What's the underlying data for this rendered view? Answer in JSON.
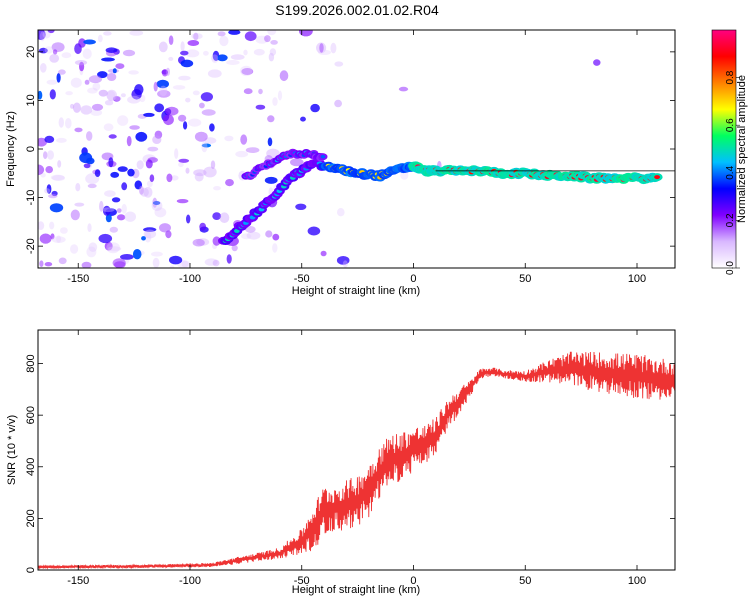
{
  "title": "S199.2026.002.01.02.R04",
  "chart_data": [
    {
      "type": "heatmap",
      "xlabel": "Height of straight line (km)",
      "ylabel": "Frequency (Hz)",
      "xlim": [
        -168,
        117
      ],
      "ylim": [
        -24.5,
        24.5
      ],
      "x_ticks": [
        -150,
        -100,
        -50,
        0,
        50,
        100
      ],
      "y_ticks": [
        -20,
        -10,
        0,
        10,
        20
      ],
      "colorbar": {
        "label": "Normalized spectral amplitude",
        "range": [
          0,
          1
        ],
        "ticks": [
          0.0,
          0.2,
          0.4,
          0.6,
          0.8
        ],
        "colors": [
          "#ffffff",
          "#d9b8ff",
          "#8000ff",
          "#0000ff",
          "#00c0ff",
          "#00ff60",
          "#ffff00",
          "#ff8000",
          "#ff0000",
          "#ff0080"
        ]
      },
      "ridge": [
        {
          "x": -85,
          "y": -19
        },
        {
          "x": -75,
          "y": -15
        },
        {
          "x": -65,
          "y": -11
        },
        {
          "x": -55,
          "y": -6
        },
        {
          "x": -45,
          "y": -3
        },
        {
          "x": -35,
          "y": -4
        },
        {
          "x": -25,
          "y": -5
        },
        {
          "x": -15,
          "y": -5.5
        },
        {
          "x": -5,
          "y": -4
        },
        {
          "x": 0,
          "y": -3.5
        },
        {
          "x": 5,
          "y": -4.5
        },
        {
          "x": 10,
          "y": -4.5
        },
        {
          "x": 20,
          "y": -4.5
        },
        {
          "x": 30,
          "y": -4.5
        },
        {
          "x": 40,
          "y": -5
        },
        {
          "x": 50,
          "y": -5
        },
        {
          "x": 60,
          "y": -5.5
        },
        {
          "x": 70,
          "y": -5.5
        },
        {
          "x": 80,
          "y": -6
        },
        {
          "x": 90,
          "y": -6
        },
        {
          "x": 100,
          "y": -6
        },
        {
          "x": 110,
          "y": -6
        }
      ],
      "upper_branch": [
        {
          "x": -75,
          "y": -6
        },
        {
          "x": -65,
          "y": -3
        },
        {
          "x": -55,
          "y": -1
        },
        {
          "x": -45,
          "y": -1
        },
        {
          "x": -40,
          "y": -2
        }
      ],
      "tail_line": {
        "x": [
          10,
          117
        ],
        "y": -4.5
      }
    },
    {
      "type": "line",
      "xlabel": "Height of straight line (km)",
      "ylabel": "SNR (10 * v/v)",
      "xlim": [
        -168,
        117
      ],
      "ylim": [
        0,
        930
      ],
      "x_ticks": [
        -150,
        -100,
        -50,
        0,
        50,
        100
      ],
      "y_ticks": [
        0,
        200,
        400,
        600,
        800
      ],
      "color": "#ee3333",
      "envelope": {
        "x": [
          -168,
          -120,
          -90,
          -80,
          -70,
          -60,
          -50,
          -45,
          -40,
          -35,
          -30,
          -25,
          -20,
          -15,
          -10,
          -5,
          0,
          5,
          10,
          15,
          20,
          25,
          30,
          35,
          40,
          50,
          60,
          70,
          80,
          90,
          100,
          110,
          117
        ],
        "mean": [
          12,
          14,
          20,
          35,
          50,
          65,
          110,
          160,
          230,
          240,
          250,
          270,
          310,
          380,
          430,
          440,
          470,
          480,
          520,
          600,
          650,
          700,
          760,
          770,
          760,
          750,
          770,
          780,
          770,
          760,
          750,
          740,
          740
        ],
        "spread": [
          10,
          12,
          15,
          25,
          30,
          40,
          90,
          160,
          180,
          160,
          180,
          180,
          200,
          200,
          180,
          180,
          160,
          150,
          130,
          110,
          100,
          60,
          40,
          30,
          30,
          40,
          80,
          120,
          140,
          150,
          160,
          150,
          140
        ]
      }
    }
  ]
}
